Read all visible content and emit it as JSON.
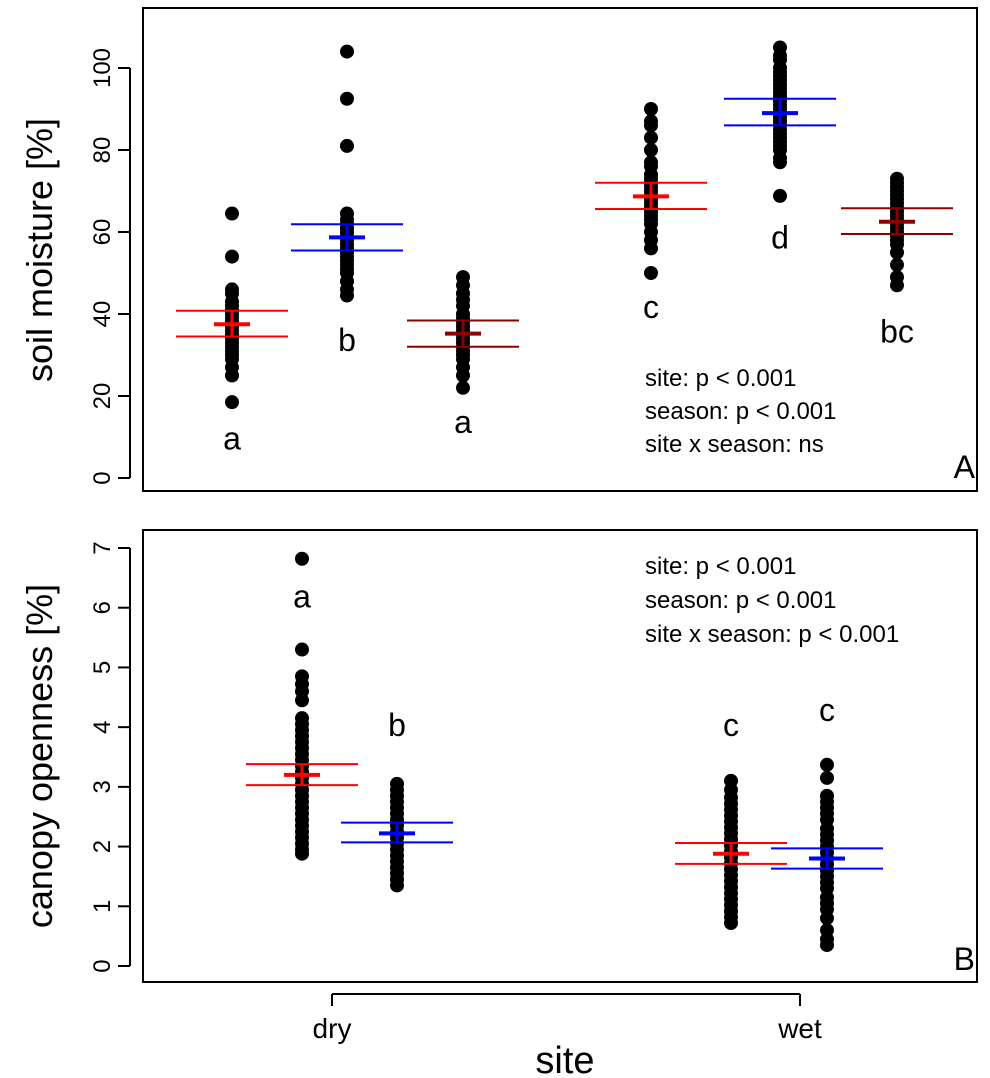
{
  "chart_data": [
    {
      "panel_label": "A",
      "type": "scatter",
      "ylabel": "soil moisture [%]",
      "ylim": [
        0,
        110
      ],
      "yticks": [
        "0",
        "20",
        "40",
        "60",
        "80",
        "100"
      ],
      "stats": [
        "site: p < 0.001",
        "season: p < 0.001",
        "site x season: ns"
      ],
      "groups": [
        {
          "site": "dry",
          "color": "#ff0000",
          "mean": 37.5,
          "ci_low": 34.5,
          "ci_high": 40.8,
          "letter": "a",
          "letter_y": 7,
          "values": [
            18.5,
            25,
            27,
            29,
            30,
            31,
            32,
            33,
            34,
            35,
            36,
            37,
            38,
            39,
            40,
            41,
            42,
            43,
            45,
            46,
            54,
            64.5
          ]
        },
        {
          "site": "dry",
          "color": "#0000ff",
          "mean": 58.7,
          "ci_low": 55.5,
          "ci_high": 61.9,
          "letter": "b",
          "letter_y": 31,
          "values": [
            44.5,
            46,
            48,
            50,
            51,
            52,
            53,
            54,
            55,
            56,
            57,
            58,
            59,
            60,
            61,
            62,
            63,
            64.5,
            81,
            92.5,
            104
          ]
        },
        {
          "site": "dry",
          "color": "#8b0000",
          "mean": 35.2,
          "ci_low": 32.0,
          "ci_high": 38.4,
          "letter": "a",
          "letter_y": 11,
          "values": [
            22,
            25,
            27,
            29,
            30,
            31,
            32,
            33,
            34,
            35,
            36,
            37,
            38,
            39,
            40,
            42,
            43.5,
            45,
            47,
            49
          ]
        },
        {
          "site": "wet",
          "color": "#ff0000",
          "mean": 68.7,
          "ci_low": 65.6,
          "ci_high": 72.0,
          "letter": "c",
          "letter_y": 39,
          "values": [
            50,
            56,
            58,
            60,
            62,
            63,
            64,
            65,
            66,
            67,
            68,
            69,
            70,
            71,
            72,
            73,
            74,
            76,
            77,
            80,
            83,
            86,
            87,
            90
          ]
        },
        {
          "site": "wet",
          "color": "#0000ff",
          "mean": 89.0,
          "ci_low": 86.0,
          "ci_high": 92.5,
          "letter": "d",
          "letter_y": 56,
          "values": [
            68.8,
            77,
            78,
            80,
            81,
            82,
            83,
            84,
            85,
            86,
            87,
            88,
            89,
            90,
            91,
            92,
            93,
            94,
            95,
            96,
            97,
            98,
            99,
            100,
            102,
            103,
            105
          ]
        },
        {
          "site": "wet",
          "color": "#8b0000",
          "mean": 62.5,
          "ci_low": 59.5,
          "ci_high": 65.8,
          "letter": "bc",
          "letter_y": 33,
          "values": [
            47,
            49,
            52,
            55,
            57,
            58,
            59,
            60,
            61,
            62,
            63,
            64,
            65,
            66,
            67,
            68,
            69,
            70,
            71,
            72,
            73
          ]
        }
      ]
    },
    {
      "panel_label": "B",
      "type": "scatter",
      "xlabel": "site",
      "ylabel": "canopy openness [%]",
      "ylim": [
        0,
        7.3
      ],
      "yticks": [
        "0",
        "1",
        "2",
        "3",
        "4",
        "5",
        "6",
        "7"
      ],
      "categories": [
        "dry",
        "wet"
      ],
      "stats": [
        "site: p < 0.001",
        "season: p < 0.001",
        "site x season: p < 0.001"
      ],
      "groups": [
        {
          "site": "dry",
          "color": "#ff0000",
          "mean": 3.2,
          "ci_low": 3.03,
          "ci_high": 3.38,
          "letter": "a",
          "letter_y": 6.0,
          "values": [
            1.88,
            1.95,
            2.05,
            2.15,
            2.25,
            2.35,
            2.45,
            2.55,
            2.65,
            2.75,
            2.85,
            2.95,
            3.05,
            3.15,
            3.25,
            3.35,
            3.45,
            3.55,
            3.65,
            3.75,
            3.85,
            3.95,
            4.05,
            4.15,
            4.45,
            4.6,
            4.72,
            4.85,
            5.3,
            6.82
          ]
        },
        {
          "site": "dry",
          "color": "#0000ff",
          "mean": 2.22,
          "ci_low": 2.07,
          "ci_high": 2.4,
          "letter": "b",
          "letter_y": 3.85,
          "values": [
            1.35,
            1.45,
            1.55,
            1.65,
            1.75,
            1.85,
            1.95,
            2.05,
            2.15,
            2.25,
            2.35,
            2.45,
            2.55,
            2.65,
            2.75,
            2.85,
            2.95,
            3.05
          ]
        },
        {
          "site": "wet",
          "color": "#ff0000",
          "mean": 1.88,
          "ci_low": 1.71,
          "ci_high": 2.06,
          "letter": "c",
          "letter_y": 3.85,
          "values": [
            0.72,
            0.82,
            0.92,
            1.02,
            1.12,
            1.22,
            1.32,
            1.42,
            1.52,
            1.62,
            1.72,
            1.82,
            1.92,
            2.02,
            2.12,
            2.22,
            2.32,
            2.42,
            2.52,
            2.62,
            2.72,
            2.82,
            2.95,
            3.1
          ]
        },
        {
          "site": "wet",
          "color": "#0000ff",
          "mean": 1.8,
          "ci_low": 1.63,
          "ci_high": 1.97,
          "letter": "c",
          "letter_y": 4.1,
          "values": [
            0.35,
            0.45,
            0.6,
            0.8,
            0.95,
            1.05,
            1.15,
            1.3,
            1.4,
            1.5,
            1.6,
            1.7,
            1.8,
            1.9,
            2.0,
            2.1,
            2.2,
            2.3,
            2.45,
            2.55,
            2.65,
            2.75,
            2.85,
            3.15,
            3.37
          ]
        }
      ]
    }
  ]
}
